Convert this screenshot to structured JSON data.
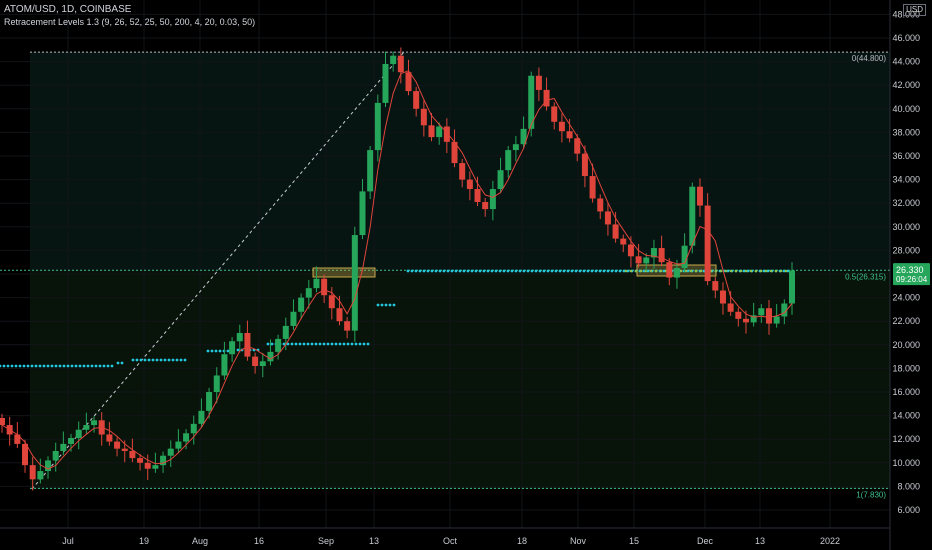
{
  "header": {
    "title": "ATOM/USD, 1D, COINBASE",
    "indicator": "Retracement Levels 1.3 (9, 26, 52, 25, 50, 200, 4, 20, 0.03, 50)"
  },
  "currency_badge": "USD",
  "price_axis": {
    "ticks": [
      "48.000",
      "46.000",
      "44.000",
      "42.000",
      "40.000",
      "38.000",
      "36.000",
      "34.000",
      "32.000",
      "30.000",
      "28.000",
      "26.000",
      "24.000",
      "22.000",
      "20.000",
      "18.000",
      "16.000",
      "14.000",
      "12.000",
      "10.000",
      "8.000",
      "6.000"
    ],
    "last_price": "26.330",
    "countdown": "09:26:04"
  },
  "time_axis": {
    "labels": [
      "Jul",
      "19",
      "Aug",
      "16",
      "Sep",
      "13",
      "Oct",
      "18",
      "Nov",
      "15",
      "Dec",
      "13",
      "2022"
    ]
  },
  "levels": {
    "top": {
      "label": "0(44.800)",
      "value": 44.8
    },
    "mid": {
      "label": "0.5(26.315)",
      "value": 26.315
    },
    "bottom": {
      "label": "1(7.830)",
      "value": 7.83
    }
  },
  "colors": {
    "up": "#26a65b",
    "down": "#e0453c",
    "ma": "#e0453c",
    "dots": "#22c7e0",
    "level_line": "#3ec08c",
    "zone": "#c8a84a",
    "price_badge": "#26a65b"
  },
  "chart_data": {
    "type": "candlestick",
    "x_range": [
      "2021-06-25",
      "2022-01-02"
    ],
    "ylim": [
      5,
      48.5
    ],
    "series_close": [
      13.2,
      12.4,
      11.6,
      9.8,
      8.6,
      9.3,
      10.2,
      11.0,
      11.6,
      12.1,
      12.8,
      13.2,
      13.6,
      12.4,
      11.8,
      11.2,
      11.0,
      10.4,
      10.0,
      9.5,
      9.8,
      10.6,
      11.2,
      11.8,
      12.5,
      13.3,
      14.4,
      16.0,
      17.4,
      19.2,
      20.3,
      21.0,
      19.0,
      18.2,
      18.6,
      19.4,
      20.5,
      21.6,
      22.8,
      24.0,
      24.8,
      25.6,
      24.2,
      23.1,
      22.0,
      21.2,
      29.3,
      33.0,
      36.5,
      40.5,
      43.8,
      44.5,
      43.1,
      41.5,
      40.0,
      38.6,
      37.6,
      38.5,
      37.2,
      35.4,
      34.0,
      33.2,
      32.1,
      31.5,
      33.2,
      34.8,
      36.5,
      37.0,
      38.3,
      42.8,
      41.6,
      40.2,
      38.9,
      38.1,
      37.5,
      36.2,
      34.3,
      32.4,
      31.3,
      30.2,
      29.0,
      28.5,
      27.5,
      26.9,
      27.4,
      28.2,
      27.0,
      25.7,
      26.5,
      28.4,
      33.4,
      31.8,
      25.4,
      24.6,
      23.5,
      22.8,
      22.2,
      21.9,
      22.5,
      23.1,
      21.8,
      22.4,
      23.5,
      26.3
    ]
  }
}
